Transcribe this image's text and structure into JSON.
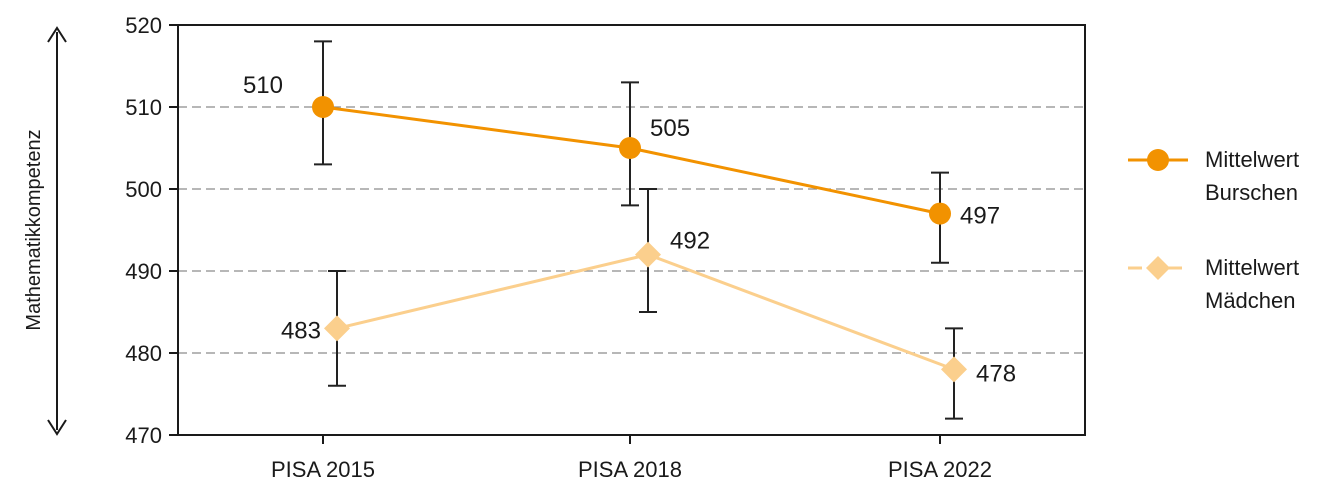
{
  "chart_data": {
    "type": "line",
    "categories": [
      "PISA 2015",
      "PISA 2018",
      "PISA 2022"
    ],
    "ylabel": "Mathematikkompetenz",
    "ylim": [
      470,
      520
    ],
    "yticks": [
      470,
      480,
      490,
      500,
      510,
      520
    ],
    "grid": "horizontal-dashed",
    "legend_position": "right",
    "series": [
      {
        "name_line1": "Mittelwert",
        "name_line2": "Burschen",
        "marker": "circle",
        "color": "#f29200",
        "values": [
          510,
          505,
          497
        ],
        "ci_low": [
          503,
          498,
          491
        ],
        "ci_high": [
          518,
          513,
          502
        ],
        "labels": [
          "510",
          "505",
          "497"
        ]
      },
      {
        "name_line1": "Mittelwert",
        "name_line2": "Mädchen",
        "marker": "diamond",
        "color": "#fbcf8d",
        "values": [
          483,
          492,
          478
        ],
        "ci_low": [
          476,
          485,
          472
        ],
        "ci_high": [
          490,
          500,
          483
        ],
        "labels": [
          "483",
          "492",
          "478"
        ]
      }
    ]
  }
}
